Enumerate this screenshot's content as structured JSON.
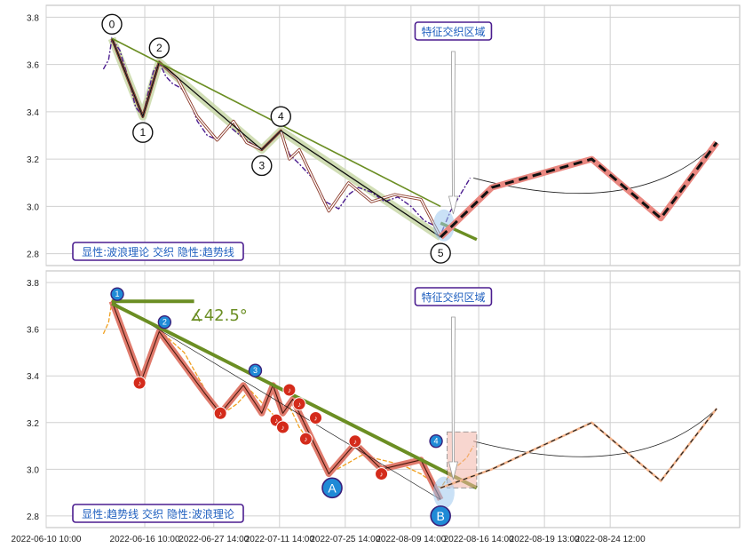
{
  "chart_data": [
    {
      "type": "line",
      "panel": "top",
      "ylim": [
        2.75,
        3.85
      ],
      "yticks": [
        "2.8",
        "3.0",
        "3.2",
        "3.4",
        "3.6",
        "3.8"
      ],
      "xticks": [
        "2022-06-10 10:00",
        "2022-06-16 10:00",
        "2022-06-27 14:00",
        "2022-07-11 14:00",
        "2022-07-25 14:00",
        "2022-08-09 14:00",
        "2022-08-16 14:00",
        "2022-08-19 13:00",
        "2022-08-24 12:00"
      ],
      "grid": true,
      "annotation": "特征交织区域",
      "caption": "显性:波浪理论 交织 隐性:趋势线",
      "wave_labels": [
        "0",
        "1",
        "2",
        "3",
        "4",
        "5"
      ],
      "wave_points": [
        {
          "label": "0",
          "x": 1.0,
          "y": 3.71
        },
        {
          "label": "1",
          "x": 1.47,
          "y": 3.38
        },
        {
          "label": "2",
          "x": 1.72,
          "y": 3.61
        },
        {
          "label": "3",
          "x": 3.28,
          "y": 3.24
        },
        {
          "label": "4",
          "x": 3.57,
          "y": 3.32
        },
        {
          "label": "5",
          "x": 6.0,
          "y": 2.87
        }
      ],
      "price_series": [
        [
          0.87,
          3.58
        ],
        [
          0.95,
          3.62
        ],
        [
          1.0,
          3.71
        ],
        [
          1.12,
          3.66
        ],
        [
          1.24,
          3.55
        ],
        [
          1.36,
          3.42
        ],
        [
          1.47,
          3.38
        ],
        [
          1.55,
          3.48
        ],
        [
          1.63,
          3.57
        ],
        [
          1.72,
          3.61
        ],
        [
          1.82,
          3.55
        ],
        [
          1.92,
          3.52
        ],
        [
          2.05,
          3.5
        ],
        [
          2.18,
          3.45
        ],
        [
          2.3,
          3.36
        ],
        [
          2.45,
          3.3
        ],
        [
          2.62,
          3.28
        ],
        [
          2.78,
          3.34
        ],
        [
          2.95,
          3.3
        ],
        [
          3.1,
          3.27
        ],
        [
          3.28,
          3.24
        ],
        [
          3.4,
          3.27
        ],
        [
          3.57,
          3.32
        ],
        [
          3.7,
          3.22
        ],
        [
          3.85,
          3.18
        ],
        [
          4.05,
          3.12
        ],
        [
          4.25,
          3.02
        ],
        [
          4.45,
          2.99
        ],
        [
          4.6,
          3.05
        ],
        [
          4.75,
          3.08
        ],
        [
          4.95,
          3.06
        ],
        [
          5.15,
          3.02
        ],
        [
          5.35,
          3.04
        ],
        [
          5.55,
          3.0
        ],
        [
          5.75,
          2.94
        ],
        [
          5.9,
          2.92
        ],
        [
          6.0,
          2.88
        ],
        [
          6.15,
          2.98
        ],
        [
          6.3,
          3.05
        ],
        [
          6.45,
          3.12
        ]
      ],
      "candle_path": [
        [
          1.0,
          3.71
        ],
        [
          1.47,
          3.38
        ],
        [
          1.72,
          3.61
        ],
        [
          2.0,
          3.54
        ],
        [
          2.3,
          3.38
        ],
        [
          2.6,
          3.28
        ],
        [
          2.85,
          3.36
        ],
        [
          3.05,
          3.27
        ],
        [
          3.28,
          3.24
        ],
        [
          3.57,
          3.32
        ],
        [
          3.7,
          3.2
        ],
        [
          3.85,
          3.24
        ],
        [
          4.3,
          2.98
        ],
        [
          4.6,
          3.1
        ],
        [
          4.95,
          3.02
        ],
        [
          5.3,
          3.05
        ],
        [
          5.7,
          3.03
        ],
        [
          6.0,
          2.87
        ]
      ],
      "trendline": [
        [
          1.0,
          3.71
        ],
        [
          6.0,
          3.0
        ]
      ],
      "trendline_ext": [
        [
          6.0,
          2.93
        ],
        [
          6.55,
          2.86
        ]
      ],
      "projection": [
        [
          6.0,
          2.87
        ],
        [
          6.78,
          3.08
        ],
        [
          8.3,
          3.2
        ],
        [
          9.35,
          2.95
        ],
        [
          10.2,
          3.27
        ]
      ],
      "projection_arc": [
        [
          6.5,
          3.12
        ],
        [
          9.0,
          3.02
        ],
        [
          10.2,
          3.27
        ]
      ]
    },
    {
      "type": "line",
      "panel": "bottom",
      "ylim": [
        2.75,
        3.85
      ],
      "yticks": [
        "2.8",
        "3.0",
        "3.2",
        "3.4",
        "3.6",
        "3.8"
      ],
      "xticks": [
        "2022-06-10 10:00",
        "2022-06-16 10:00",
        "2022-06-27 14:00",
        "2022-07-11 14:00",
        "2022-07-25 14:00",
        "2022-08-09 14:00",
        "2022-08-16 14:00",
        "2022-08-19 13:00",
        "2022-08-24 12:00"
      ],
      "grid": true,
      "annotation": "特征交织区域",
      "caption": "显性:趋势线 交织 隐性:波浪理论",
      "angle_label": "42.5°",
      "trend_labels": [
        "1",
        "2",
        "3",
        "4"
      ],
      "corrective_labels": [
        "A",
        "B"
      ],
      "wave_points": [
        {
          "label": "1",
          "x": 1.0,
          "y": 3.72
        },
        {
          "label": "2",
          "x": 1.72,
          "y": 3.6
        },
        {
          "label": "3",
          "x": 3.1,
          "y": 3.4
        },
        {
          "label": "4",
          "x": 5.85,
          "y": 3.09
        }
      ],
      "ab_points": [
        {
          "label": "A",
          "x": 4.35,
          "y": 2.92
        },
        {
          "label": "B",
          "x": 6.0,
          "y": 2.8
        }
      ],
      "price_series": [
        [
          0.87,
          3.58
        ],
        [
          0.95,
          3.63
        ],
        [
          1.0,
          3.72
        ],
        [
          1.2,
          3.6
        ],
        [
          1.4,
          3.42
        ],
        [
          1.5,
          3.38
        ],
        [
          1.62,
          3.52
        ],
        [
          1.72,
          3.6
        ],
        [
          1.9,
          3.55
        ],
        [
          2.1,
          3.5
        ],
        [
          2.3,
          3.4
        ],
        [
          2.5,
          3.3
        ],
        [
          2.7,
          3.24
        ],
        [
          2.9,
          3.28
        ],
        [
          3.1,
          3.34
        ],
        [
          3.3,
          3.28
        ],
        [
          3.5,
          3.22
        ],
        [
          3.7,
          3.27
        ],
        [
          3.85,
          3.18
        ],
        [
          4.05,
          3.1
        ],
        [
          4.3,
          2.98
        ],
        [
          4.55,
          3.02
        ],
        [
          4.8,
          3.06
        ],
        [
          5.1,
          3.04
        ],
        [
          5.4,
          3.02
        ],
        [
          5.7,
          2.98
        ],
        [
          6.0,
          2.92
        ],
        [
          6.2,
          3.0
        ],
        [
          6.4,
          3.05
        ],
        [
          6.5,
          3.1
        ]
      ],
      "thick_path": [
        [
          1.0,
          3.72
        ],
        [
          1.45,
          3.38
        ],
        [
          1.72,
          3.59
        ],
        [
          2.4,
          3.33
        ],
        [
          2.65,
          3.24
        ],
        [
          3.0,
          3.36
        ],
        [
          3.28,
          3.24
        ],
        [
          3.45,
          3.36
        ],
        [
          3.6,
          3.24
        ],
        [
          3.75,
          3.3
        ],
        [
          4.3,
          2.98
        ],
        [
          4.7,
          3.11
        ],
        [
          5.1,
          3.0
        ],
        [
          5.7,
          3.04
        ],
        [
          6.0,
          2.87
        ]
      ],
      "trendline": [
        [
          1.0,
          3.71
        ],
        [
          6.55,
          2.92
        ]
      ],
      "horizontal_line": [
        [
          1.0,
          3.72
        ],
        [
          2.25,
          3.72
        ]
      ],
      "projection": [
        [
          6.0,
          2.92
        ],
        [
          6.78,
          3.0
        ],
        [
          8.3,
          3.2
        ],
        [
          9.35,
          2.95
        ],
        [
          10.2,
          3.26
        ]
      ],
      "projection_arc": [
        [
          6.5,
          3.12
        ],
        [
          9.0,
          3.02
        ],
        [
          10.2,
          3.26
        ]
      ],
      "note_markers": [
        [
          1.42,
          3.37
        ],
        [
          2.65,
          3.24
        ],
        [
          3.5,
          3.21
        ],
        [
          3.6,
          3.18
        ],
        [
          3.7,
          3.34
        ],
        [
          3.85,
          3.28
        ],
        [
          3.95,
          3.13
        ],
        [
          4.1,
          3.22
        ],
        [
          4.7,
          3.12
        ],
        [
          5.1,
          2.98
        ]
      ]
    }
  ]
}
